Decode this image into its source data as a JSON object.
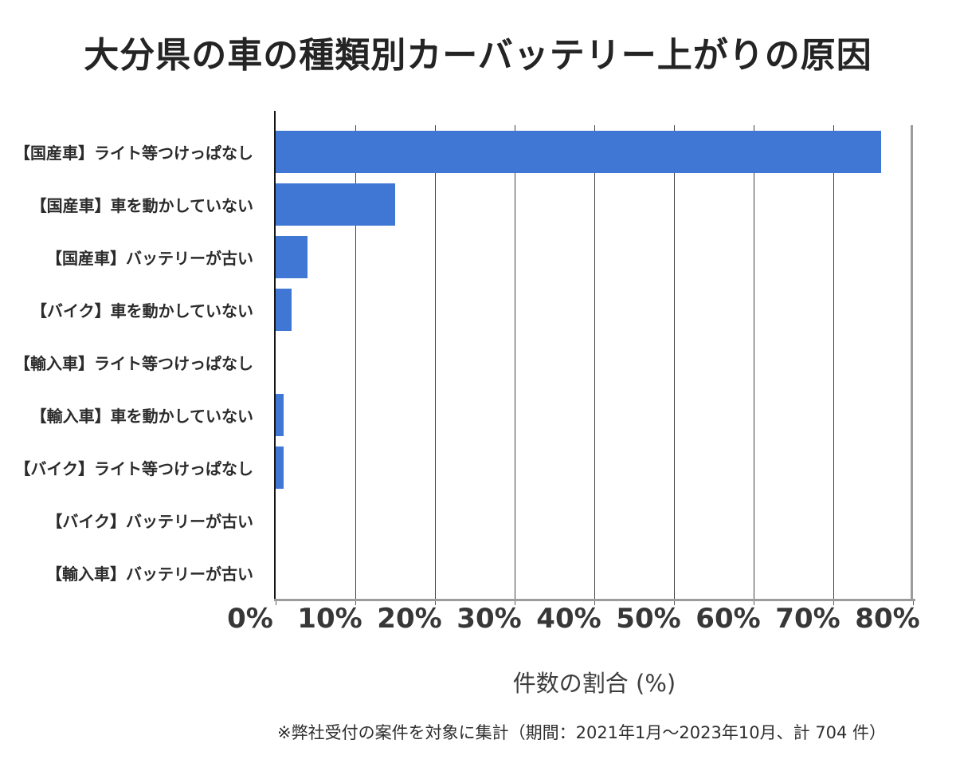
{
  "title": "大分県の車の種類別カーバッテリー上がりの原因",
  "footnote": "※弊社受付の案件を対象に集計（期間：2021年1月～2023年10月、計 704 件）",
  "chart_data": {
    "type": "bar",
    "orientation": "horizontal",
    "title": "大分県の車の種類別カーバッテリー上がりの原因",
    "categories": [
      "【国産車】ライト等つけっぱなし",
      "【国産車】車を動かしていない",
      "【国産車】バッテリーが古い",
      "【バイク】車を動かしていない",
      "【輸入車】ライト等つけっぱなし",
      "【輸入車】車を動かしていない",
      "【バイク】ライト等つけっぱなし",
      "【バイク】バッテリーが古い",
      "【輸入車】バッテリーが古い"
    ],
    "values": [
      76,
      15,
      4,
      2,
      0,
      1,
      1,
      0,
      0
    ],
    "xlabel": "件数の割合 (%)",
    "xlim": [
      0,
      80
    ],
    "xtick_step": 10,
    "xtick_labels": [
      "0%",
      "10%",
      "20%",
      "30%",
      "40%",
      "50%",
      "60%",
      "70%",
      "80%"
    ],
    "grid": true,
    "legend": "none",
    "bar_color": "#4076D4",
    "axis_frame_color": "#9C9C9C",
    "gridline_color": "#424242"
  }
}
